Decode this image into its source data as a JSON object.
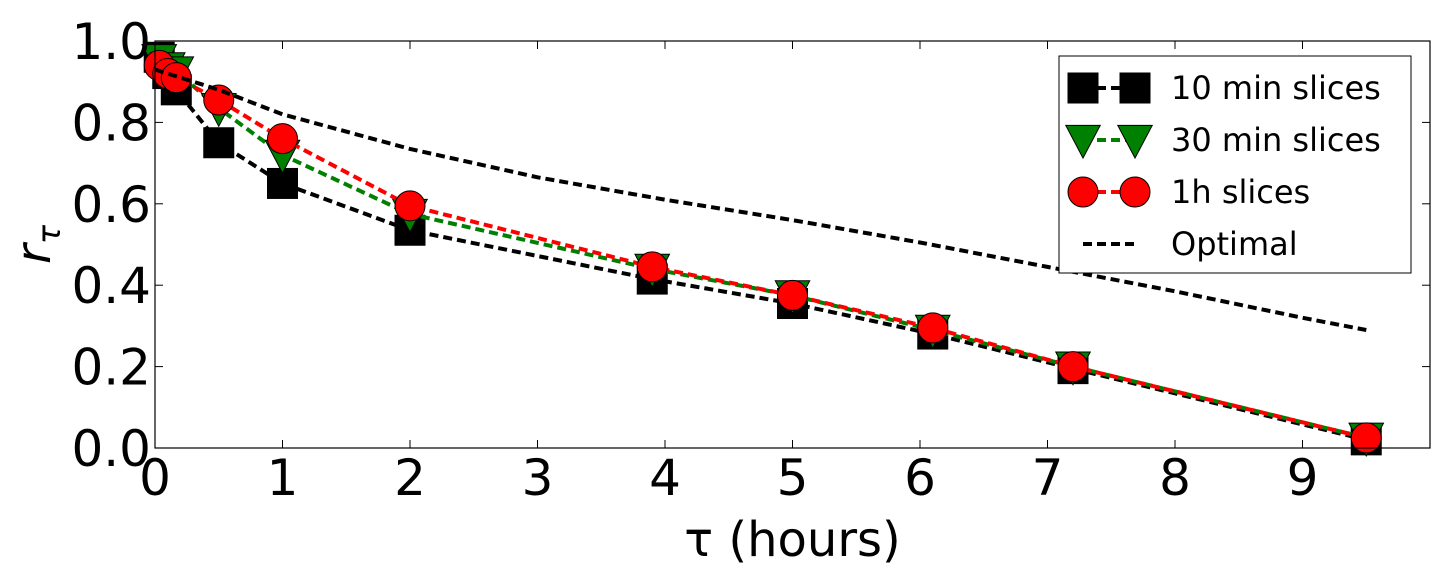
{
  "chart_data": {
    "type": "line",
    "xlabel": "τ (hours)",
    "ylabel": "r",
    "ylabel_subscript": "τ",
    "xlim": [
      0,
      10
    ],
    "ylim": [
      0,
      1.0
    ],
    "xticks": [
      "0",
      "1",
      "2",
      "3",
      "4",
      "5",
      "6",
      "7",
      "8",
      "9"
    ],
    "yticks": [
      "0.0",
      "0.2",
      "0.4",
      "0.6",
      "0.8",
      "1.0"
    ],
    "grid": false,
    "legend_position": "top-right",
    "series": [
      {
        "name": "10 min slices",
        "color": "#000000",
        "marker": "square",
        "x": [
          0.033,
          0.1,
          0.167,
          0.5,
          1.0,
          2.0,
          3.9,
          5.0,
          6.1,
          7.2,
          9.5
        ],
        "y": [
          0.96,
          0.92,
          0.88,
          0.75,
          0.65,
          0.535,
          0.415,
          0.355,
          0.28,
          0.195,
          0.02
        ]
      },
      {
        "name": "30 min slices",
        "color": "#008000",
        "marker": "triangle-down",
        "x": [
          0.033,
          0.1,
          0.167,
          0.5,
          1.0,
          2.0,
          3.9,
          5.0,
          6.1,
          7.2,
          9.5
        ],
        "y": [
          0.955,
          0.935,
          0.925,
          0.835,
          0.72,
          0.575,
          0.44,
          0.375,
          0.29,
          0.2,
          0.025
        ]
      },
      {
        "name": "1h slices",
        "color": "#ff0000",
        "marker": "circle",
        "x": [
          0.033,
          0.1,
          0.167,
          0.5,
          1.0,
          2.0,
          3.9,
          5.0,
          6.1,
          7.2,
          9.5
        ],
        "y": [
          0.94,
          0.92,
          0.91,
          0.855,
          0.76,
          0.595,
          0.445,
          0.375,
          0.295,
          0.2,
          0.025
        ]
      },
      {
        "name": "Optimal",
        "color": "#000000",
        "marker": "none",
        "x": [
          0.0,
          0.5,
          1.0,
          2.0,
          3.0,
          4.0,
          5.0,
          6.0,
          7.0,
          8.0,
          9.0,
          9.5
        ],
        "y": [
          0.93,
          0.88,
          0.82,
          0.735,
          0.665,
          0.61,
          0.56,
          0.505,
          0.445,
          0.385,
          0.32,
          0.29
        ]
      }
    ]
  }
}
